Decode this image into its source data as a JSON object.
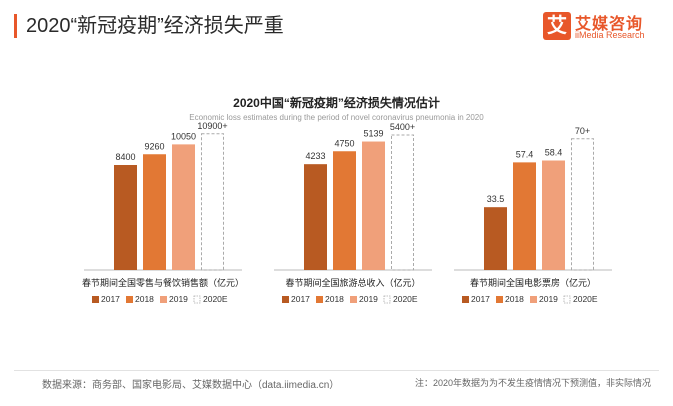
{
  "header": {
    "title": "2020“新冠疫期”经济损失严重",
    "logo_glyph": "艾",
    "logo_cn": "艾媒咨询",
    "logo_en": "iiMedia Research"
  },
  "chart_title": "2020中国“新冠疫期”经济损失情况估计",
  "chart_subtitle": "Economic loss estimates during the period of novel coronavirus pneumonia in 2020",
  "colors": {
    "2017": "#b85a22",
    "2018": "#e27834",
    "2019": "#f0a07a",
    "2020E": "#aaaaaa",
    "accent": "#e8572a"
  },
  "legend_labels": [
    "2017",
    "2018",
    "2019",
    "2020E"
  ],
  "chart_data": [
    {
      "type": "bar",
      "title": "",
      "xlabel": "春节期间全国零售与餐饮销售额（亿元）",
      "categories": [
        "2017",
        "2018",
        "2019",
        "2020E"
      ],
      "values": [
        8400,
        9260,
        10050,
        10900
      ],
      "data_labels": [
        "8400",
        "9260",
        "10050",
        "10900+"
      ],
      "ylim": [
        0,
        12000
      ]
    },
    {
      "type": "bar",
      "title": "",
      "xlabel": "春节期间全国旅游总收入（亿元）",
      "categories": [
        "2017",
        "2018",
        "2019",
        "2020E"
      ],
      "values": [
        4233,
        4750,
        5139,
        5400
      ],
      "data_labels": [
        "4233",
        "4750",
        "5139",
        "5400+"
      ],
      "ylim": [
        0,
        6000
      ]
    },
    {
      "type": "bar",
      "title": "",
      "xlabel": "春节期间全国电影票房（亿元）",
      "categories": [
        "2017",
        "2018",
        "2019",
        "2020E"
      ],
      "values": [
        33.5,
        57.4,
        58.4,
        70
      ],
      "data_labels": [
        "33.5",
        "57.4",
        "58.4",
        "70+"
      ],
      "ylim": [
        0,
        80
      ]
    }
  ],
  "footer": {
    "source": "数据来源：商务部、国家电影局、艾媒数据中心（data.iimedia.cn）",
    "note": "注：2020年数据为为不发生疫情情况下预测值，非实际情况"
  }
}
